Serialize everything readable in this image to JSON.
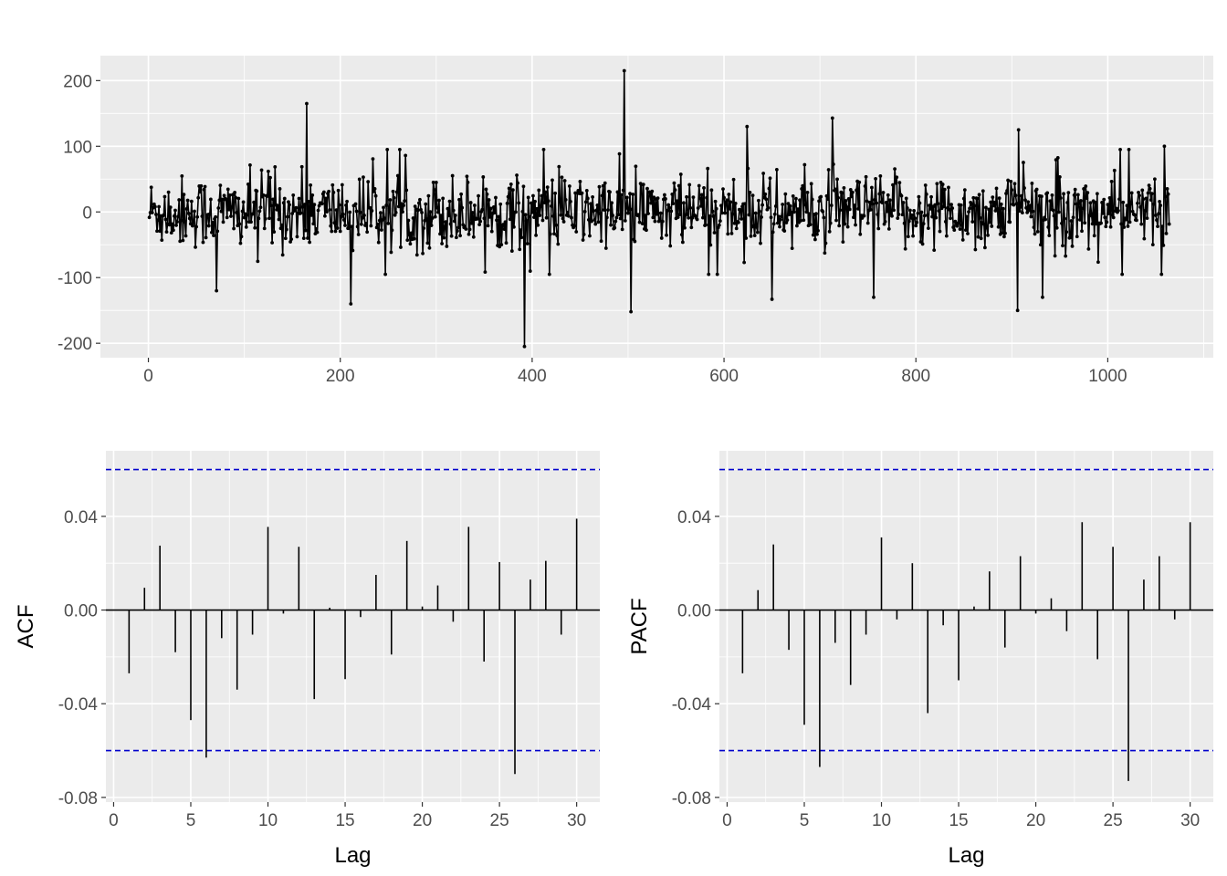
{
  "colors": {
    "panel": "#EBEBEB",
    "grid": "#FFFFFF",
    "series": "#000000",
    "confidence": "#0000CC",
    "tick_text": "#4D4D4D"
  },
  "chart_data": [
    {
      "type": "line",
      "title": "",
      "xlabel": "",
      "ylabel": "",
      "xlim": [
        -50,
        1110
      ],
      "ylim": [
        -222,
        238
      ],
      "x_ticks": [
        0,
        200,
        400,
        600,
        800,
        1000
      ],
      "y_ticks": [
        -200,
        -100,
        0,
        100,
        200
      ],
      "x_tick_labels": [
        "0",
        "200",
        "400",
        "600",
        "800",
        "1000"
      ],
      "y_tick_labels": [
        "-200",
        "-100",
        "0",
        "100",
        "200"
      ],
      "n_points": 1064,
      "markers": true,
      "notable_points": [
        {
          "x": 71,
          "y": -120
        },
        {
          "x": 165,
          "y": 165
        },
        {
          "x": 211,
          "y": -140
        },
        {
          "x": 392,
          "y": -205
        },
        {
          "x": 496,
          "y": 215
        },
        {
          "x": 503,
          "y": -152
        },
        {
          "x": 624,
          "y": 130
        },
        {
          "x": 650,
          "y": -133
        },
        {
          "x": 713,
          "y": 143
        },
        {
          "x": 756,
          "y": -130
        },
        {
          "x": 906,
          "y": -150
        },
        {
          "x": 907,
          "y": 125
        },
        {
          "x": 932,
          "y": -130
        },
        {
          "x": 1056,
          "y": -95
        },
        {
          "x": 1059,
          "y": 100
        }
      ]
    },
    {
      "type": "bar",
      "title": "",
      "xlabel": "Lag",
      "ylabel": "ACF",
      "xlim": [
        -0.5,
        31.5
      ],
      "ylim": [
        -0.082,
        0.068
      ],
      "x_ticks": [
        0,
        5,
        10,
        15,
        20,
        25,
        30
      ],
      "y_ticks": [
        -0.08,
        -0.04,
        0.0,
        0.04
      ],
      "x_tick_labels": [
        "0",
        "5",
        "10",
        "15",
        "20",
        "25",
        "30"
      ],
      "y_tick_labels": [
        "-0.08",
        "-0.04",
        "0.00",
        "0.04"
      ],
      "confidence_bound": 0.06,
      "lags": [
        1,
        2,
        3,
        4,
        5,
        6,
        7,
        8,
        9,
        10,
        11,
        12,
        13,
        14,
        15,
        16,
        17,
        18,
        19,
        20,
        21,
        22,
        23,
        24,
        25,
        26,
        27,
        28,
        29,
        30
      ],
      "values": [
        -0.027,
        0.0095,
        0.0275,
        -0.018,
        -0.047,
        -0.063,
        -0.012,
        -0.034,
        -0.0105,
        0.0355,
        -0.0015,
        0.027,
        -0.038,
        0.001,
        -0.0295,
        -0.003,
        0.015,
        -0.019,
        0.0295,
        0.0015,
        0.0105,
        -0.005,
        0.0355,
        -0.022,
        0.0205,
        -0.07,
        0.013,
        0.021,
        -0.0105,
        0.039
      ]
    },
    {
      "type": "bar",
      "title": "",
      "xlabel": "Lag",
      "ylabel": "PACF",
      "xlim": [
        -0.5,
        31.5
      ],
      "ylim": [
        -0.082,
        0.068
      ],
      "x_ticks": [
        0,
        5,
        10,
        15,
        20,
        25,
        30
      ],
      "y_ticks": [
        -0.08,
        -0.04,
        0.0,
        0.04
      ],
      "x_tick_labels": [
        "0",
        "5",
        "10",
        "15",
        "20",
        "25",
        "30"
      ],
      "y_tick_labels": [
        "-0.08",
        "-0.04",
        "0.00",
        "0.04"
      ],
      "confidence_bound": 0.06,
      "lags": [
        1,
        2,
        3,
        4,
        5,
        6,
        7,
        8,
        9,
        10,
        11,
        12,
        13,
        14,
        15,
        16,
        17,
        18,
        19,
        20,
        21,
        22,
        23,
        24,
        25,
        26,
        27,
        28,
        29,
        30
      ],
      "values": [
        -0.027,
        0.0085,
        0.028,
        -0.017,
        -0.049,
        -0.067,
        -0.014,
        -0.032,
        -0.0105,
        0.031,
        -0.004,
        0.02,
        -0.044,
        -0.0065,
        -0.03,
        0.0015,
        0.0165,
        -0.016,
        0.023,
        -0.0015,
        0.005,
        -0.009,
        0.0375,
        -0.021,
        0.027,
        -0.073,
        0.013,
        0.023,
        -0.004,
        0.0375
      ]
    }
  ]
}
